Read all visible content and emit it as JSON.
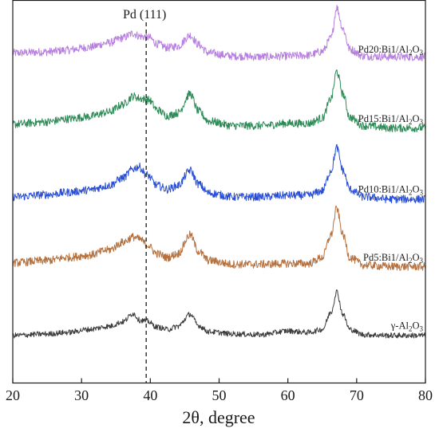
{
  "chart_data": {
    "type": "line",
    "title": "",
    "xlabel": "2θ, degree",
    "ylabel": "",
    "xlim": [
      20,
      80
    ],
    "xticks": [
      20,
      30,
      40,
      50,
      60,
      70,
      80
    ],
    "grid": false,
    "y_ticks_shown": false,
    "reference_line": {
      "x": 39.4,
      "label": "Pd (111)",
      "style": "dashed"
    },
    "series": [
      {
        "name_parts": [
          "Pd20:Bi1/Al",
          "2",
          "O",
          "3"
        ],
        "color": "#b77fe0",
        "baseline": 0.8,
        "noise": 0.018,
        "points": [
          [
            20,
            0.1
          ],
          [
            25,
            0.115
          ],
          [
            28,
            0.14
          ],
          [
            31,
            0.175
          ],
          [
            34,
            0.235
          ],
          [
            36,
            0.3
          ],
          [
            37.5,
            0.36
          ],
          [
            38.5,
            0.32
          ],
          [
            39.8,
            0.305
          ],
          [
            41,
            0.22
          ],
          [
            42.5,
            0.17
          ],
          [
            44,
            0.19
          ],
          [
            45.8,
            0.335
          ],
          [
            47,
            0.21
          ],
          [
            48.5,
            0.1
          ],
          [
            52,
            0.06
          ],
          [
            56,
            0.05
          ],
          [
            60,
            0.06
          ],
          [
            63,
            0.07
          ],
          [
            65,
            0.12
          ],
          [
            66.3,
            0.3
          ],
          [
            67.1,
            0.7
          ],
          [
            68,
            0.42
          ],
          [
            69,
            0.15
          ],
          [
            71,
            0.06
          ],
          [
            75,
            0.05
          ],
          [
            80,
            0.05
          ]
        ]
      },
      {
        "name_parts": [
          "Pd15:Bi1/Al",
          "2",
          "O",
          "3"
        ],
        "color": "#2e8b57",
        "baseline": 1.72,
        "noise": 0.018,
        "points": [
          [
            20,
            0.08
          ],
          [
            25,
            0.11
          ],
          [
            28,
            0.15
          ],
          [
            31,
            0.18
          ],
          [
            34,
            0.24
          ],
          [
            36,
            0.34
          ],
          [
            37.5,
            0.45
          ],
          [
            38.5,
            0.42
          ],
          [
            39.8,
            0.4
          ],
          [
            41,
            0.27
          ],
          [
            42.5,
            0.19
          ],
          [
            44,
            0.23
          ],
          [
            45.8,
            0.48
          ],
          [
            47,
            0.25
          ],
          [
            48.5,
            0.12
          ],
          [
            52,
            0.06
          ],
          [
            56,
            0.06
          ],
          [
            60,
            0.09
          ],
          [
            63,
            0.09
          ],
          [
            65,
            0.16
          ],
          [
            66.3,
            0.42
          ],
          [
            67.1,
            0.78
          ],
          [
            68,
            0.48
          ],
          [
            69,
            0.17
          ],
          [
            71,
            0.06
          ],
          [
            75,
            0.03
          ],
          [
            80,
            0.03
          ]
        ]
      },
      {
        "name_parts": [
          "Pd10:Bi1/Al",
          "2",
          "O",
          "3"
        ],
        "color": "#2a4fd6",
        "baseline": 2.65,
        "noise": 0.018,
        "points": [
          [
            20,
            0.05
          ],
          [
            25,
            0.08
          ],
          [
            28,
            0.11
          ],
          [
            31,
            0.14
          ],
          [
            34,
            0.2
          ],
          [
            36,
            0.3
          ],
          [
            37.5,
            0.42
          ],
          [
            38.3,
            0.45
          ],
          [
            39.5,
            0.34
          ],
          [
            41,
            0.2
          ],
          [
            42.5,
            0.15
          ],
          [
            44,
            0.2
          ],
          [
            45.8,
            0.4
          ],
          [
            47,
            0.22
          ],
          [
            48.5,
            0.1
          ],
          [
            52,
            0.05
          ],
          [
            56,
            0.05
          ],
          [
            60,
            0.07
          ],
          [
            63,
            0.07
          ],
          [
            65,
            0.13
          ],
          [
            66.3,
            0.4
          ],
          [
            67.1,
            0.7
          ],
          [
            68,
            0.4
          ],
          [
            69,
            0.15
          ],
          [
            71,
            0.05
          ],
          [
            75,
            0.02
          ],
          [
            80,
            0.02
          ]
        ]
      },
      {
        "name_parts": [
          "Pd5:Bi1/Al",
          "2",
          "O",
          "3"
        ],
        "color": "#b5713f",
        "baseline": 3.55,
        "noise": 0.018,
        "points": [
          [
            20,
            0.08
          ],
          [
            25,
            0.11
          ],
          [
            28,
            0.15
          ],
          [
            31,
            0.18
          ],
          [
            34,
            0.25
          ],
          [
            36,
            0.35
          ],
          [
            37.5,
            0.42
          ],
          [
            38.5,
            0.39
          ],
          [
            39.5,
            0.32
          ],
          [
            41,
            0.2
          ],
          [
            42.5,
            0.15
          ],
          [
            44,
            0.2
          ],
          [
            45.8,
            0.45
          ],
          [
            47,
            0.23
          ],
          [
            48.5,
            0.11
          ],
          [
            52,
            0.06
          ],
          [
            56,
            0.06
          ],
          [
            60,
            0.07
          ],
          [
            63,
            0.07
          ],
          [
            65,
            0.15
          ],
          [
            66.3,
            0.45
          ],
          [
            67.1,
            0.8
          ],
          [
            68,
            0.45
          ],
          [
            69,
            0.15
          ],
          [
            71,
            0.05
          ],
          [
            75,
            0.03
          ],
          [
            80,
            0.03
          ]
        ]
      },
      {
        "name_parts": [
          "γ-Al",
          "2",
          "O",
          "3"
        ],
        "color": "#3d3d3d",
        "baseline": 4.45,
        "noise": 0.012,
        "points": [
          [
            20,
            0.02
          ],
          [
            25,
            0.04
          ],
          [
            28,
            0.06
          ],
          [
            31,
            0.1
          ],
          [
            34,
            0.14
          ],
          [
            36,
            0.2
          ],
          [
            37.5,
            0.31
          ],
          [
            38.5,
            0.22
          ],
          [
            39.5,
            0.21
          ],
          [
            41,
            0.13
          ],
          [
            42.5,
            0.1
          ],
          [
            44,
            0.14
          ],
          [
            45.8,
            0.3
          ],
          [
            47,
            0.15
          ],
          [
            48.5,
            0.07
          ],
          [
            52,
            0.04
          ],
          [
            56,
            0.03
          ],
          [
            60,
            0.08
          ],
          [
            63,
            0.06
          ],
          [
            65,
            0.1
          ],
          [
            66.3,
            0.33
          ],
          [
            67.1,
            0.6
          ],
          [
            68,
            0.3
          ],
          [
            69,
            0.1
          ],
          [
            71,
            0.03
          ],
          [
            75,
            0.02
          ],
          [
            80,
            0.02
          ]
        ]
      }
    ]
  }
}
